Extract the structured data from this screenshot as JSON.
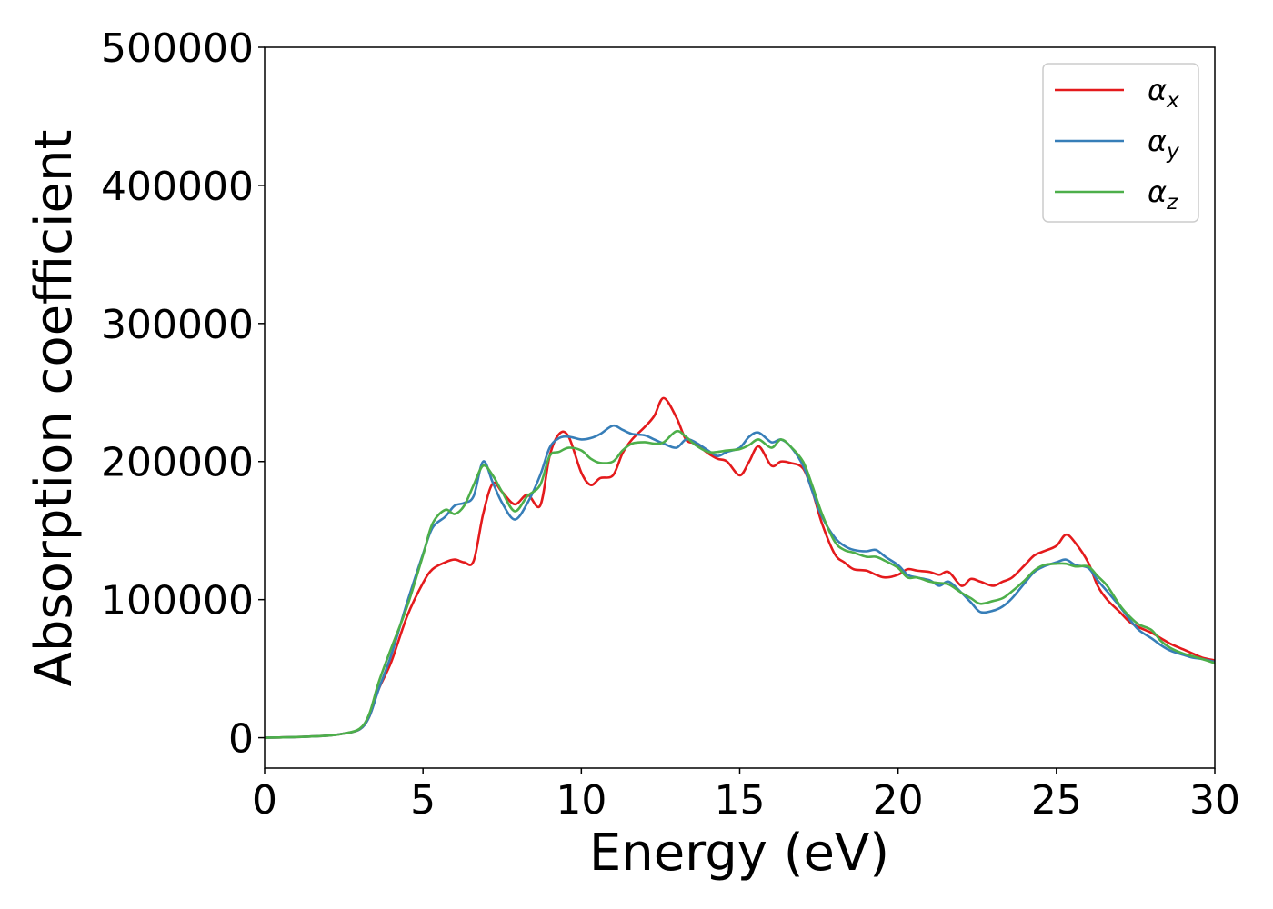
{
  "chart_data": {
    "type": "line",
    "xlabel": "Energy (eV)",
    "ylabel": "Absorption coefficient",
    "xlim": [
      0,
      30
    ],
    "ylim": [
      -22000,
      500000
    ],
    "xticks": [
      "0",
      "5",
      "10",
      "15",
      "20",
      "25",
      "30"
    ],
    "yticks": [
      "0",
      "100000",
      "200000",
      "300000",
      "400000",
      "500000"
    ],
    "grid": false,
    "legend_position": "top-right",
    "series": [
      {
        "name": "α_x",
        "label_main": "α",
        "label_sub": "x",
        "color": "#e41a1c",
        "x": [
          0,
          1,
          2,
          2.5,
          3.0,
          3.3,
          3.6,
          4.0,
          4.5,
          5.0,
          5.3,
          5.7,
          6.0,
          6.3,
          6.6,
          6.9,
          7.2,
          7.5,
          7.9,
          8.3,
          8.7,
          9.0,
          9.3,
          9.6,
          10.0,
          10.3,
          10.6,
          11.0,
          11.3,
          11.6,
          12.0,
          12.3,
          12.6,
          13.0,
          13.3,
          13.6,
          14.0,
          14.3,
          14.6,
          15.0,
          15.3,
          15.6,
          16.0,
          16.3,
          16.6,
          17.0,
          17.3,
          17.6,
          18.0,
          18.3,
          18.6,
          19.0,
          19.3,
          19.6,
          20.0,
          20.3,
          20.6,
          21.0,
          21.3,
          21.6,
          22.0,
          22.3,
          22.6,
          23.0,
          23.3,
          23.6,
          24.0,
          24.3,
          24.6,
          25.0,
          25.3,
          25.6,
          26.0,
          26.3,
          26.6,
          27.0,
          27.3,
          27.6,
          28.0,
          28.3,
          28.6,
          29.0,
          29.3,
          29.6,
          30.0
        ],
        "y": [
          0,
          500,
          1500,
          3000,
          6000,
          15000,
          35000,
          55000,
          88000,
          112000,
          122000,
          127000,
          129000,
          127000,
          128000,
          162000,
          184000,
          178000,
          169000,
          176000,
          168000,
          204000,
          220000,
          218000,
          192000,
          183000,
          188000,
          190000,
          206000,
          216000,
          225000,
          233000,
          246000,
          232000,
          216000,
          213000,
          206000,
          202000,
          200000,
          190000,
          200000,
          211000,
          197000,
          200000,
          199000,
          195000,
          178000,
          155000,
          133000,
          127000,
          122000,
          121000,
          118000,
          116000,
          118000,
          122000,
          121000,
          120000,
          118000,
          120000,
          110000,
          115000,
          113000,
          110000,
          113000,
          116000,
          125000,
          132000,
          135000,
          139000,
          147000,
          141000,
          127000,
          110000,
          100000,
          91000,
          84000,
          80000,
          76000,
          72000,
          68000,
          64000,
          61000,
          58000,
          56000
        ]
      },
      {
        "name": "α_y",
        "label_main": "α",
        "label_sub": "y",
        "color": "#377eb8",
        "x": [
          0,
          1,
          2,
          2.5,
          3.0,
          3.3,
          3.6,
          4.0,
          4.5,
          5.0,
          5.3,
          5.7,
          6.0,
          6.3,
          6.6,
          6.9,
          7.2,
          7.5,
          7.9,
          8.3,
          8.7,
          9.0,
          9.3,
          9.6,
          10.0,
          10.3,
          10.6,
          11.0,
          11.3,
          11.6,
          12.0,
          12.3,
          12.6,
          13.0,
          13.3,
          13.6,
          14.0,
          14.3,
          14.6,
          15.0,
          15.3,
          15.6,
          16.0,
          16.3,
          16.6,
          17.0,
          17.3,
          17.6,
          18.0,
          18.3,
          18.6,
          19.0,
          19.3,
          19.6,
          20.0,
          20.3,
          20.6,
          21.0,
          21.3,
          21.6,
          22.0,
          22.3,
          22.6,
          23.0,
          23.3,
          23.6,
          24.0,
          24.3,
          24.6,
          25.0,
          25.3,
          25.6,
          26.0,
          26.3,
          26.6,
          27.0,
          27.3,
          27.6,
          28.0,
          28.3,
          28.6,
          29.0,
          29.3,
          29.6,
          30.0
        ],
        "y": [
          0,
          500,
          1500,
          3000,
          6000,
          15000,
          35000,
          60000,
          98000,
          133000,
          152000,
          160000,
          168000,
          170000,
          175000,
          200000,
          185000,
          170000,
          158000,
          170000,
          190000,
          210000,
          217000,
          218000,
          216000,
          217000,
          220000,
          226000,
          223000,
          220000,
          219000,
          216000,
          213000,
          210000,
          216000,
          214000,
          208000,
          204000,
          207000,
          210000,
          218000,
          221000,
          214000,
          216000,
          211000,
          197000,
          178000,
          160000,
          145000,
          139000,
          136000,
          135000,
          136000,
          131000,
          125000,
          118000,
          116000,
          114000,
          110000,
          113000,
          105000,
          98000,
          91000,
          92000,
          95000,
          101000,
          112000,
          120000,
          124000,
          127000,
          129000,
          125000,
          123000,
          114000,
          106000,
          95000,
          86000,
          78000,
          72000,
          67000,
          63000,
          60000,
          58000,
          57000,
          55000
        ]
      },
      {
        "name": "α_z",
        "label_main": "α",
        "label_sub": "z",
        "color": "#4daf4a",
        "x": [
          0,
          1,
          2,
          2.5,
          3.0,
          3.3,
          3.6,
          4.0,
          4.5,
          5.0,
          5.3,
          5.7,
          6.0,
          6.3,
          6.6,
          6.9,
          7.2,
          7.5,
          7.9,
          8.3,
          8.7,
          9.0,
          9.3,
          9.6,
          10.0,
          10.3,
          10.6,
          11.0,
          11.3,
          11.6,
          12.0,
          12.3,
          12.6,
          13.0,
          13.3,
          13.6,
          14.0,
          14.3,
          14.6,
          15.0,
          15.3,
          15.6,
          16.0,
          16.3,
          16.6,
          17.0,
          17.3,
          17.6,
          18.0,
          18.3,
          18.6,
          19.0,
          19.3,
          19.6,
          20.0,
          20.3,
          20.6,
          21.0,
          21.3,
          21.6,
          22.0,
          22.3,
          22.6,
          23.0,
          23.3,
          23.6,
          24.0,
          24.3,
          24.6,
          25.0,
          25.3,
          25.6,
          26.0,
          26.3,
          26.6,
          27.0,
          27.3,
          27.6,
          28.0,
          28.3,
          28.6,
          29.0,
          29.3,
          29.6,
          30.0
        ],
        "y": [
          0,
          500,
          1500,
          3000,
          6500,
          17000,
          40000,
          65000,
          95000,
          132000,
          155000,
          165000,
          162000,
          168000,
          183000,
          197000,
          190000,
          178000,
          164000,
          175000,
          183000,
          204000,
          207000,
          210000,
          208000,
          202000,
          199000,
          200000,
          208000,
          213000,
          214000,
          213000,
          214000,
          222000,
          218000,
          212000,
          207000,
          207000,
          208000,
          209000,
          212000,
          216000,
          210000,
          216000,
          211000,
          200000,
          182000,
          162000,
          142000,
          136000,
          134000,
          131000,
          131000,
          128000,
          123000,
          116000,
          116000,
          113000,
          112000,
          111000,
          105000,
          101000,
          97000,
          99000,
          101000,
          106000,
          114000,
          121000,
          125000,
          126000,
          126000,
          124000,
          124000,
          117000,
          110000,
          96000,
          88000,
          82000,
          78000,
          70000,
          65000,
          61000,
          59000,
          57000,
          54000
        ]
      }
    ]
  }
}
